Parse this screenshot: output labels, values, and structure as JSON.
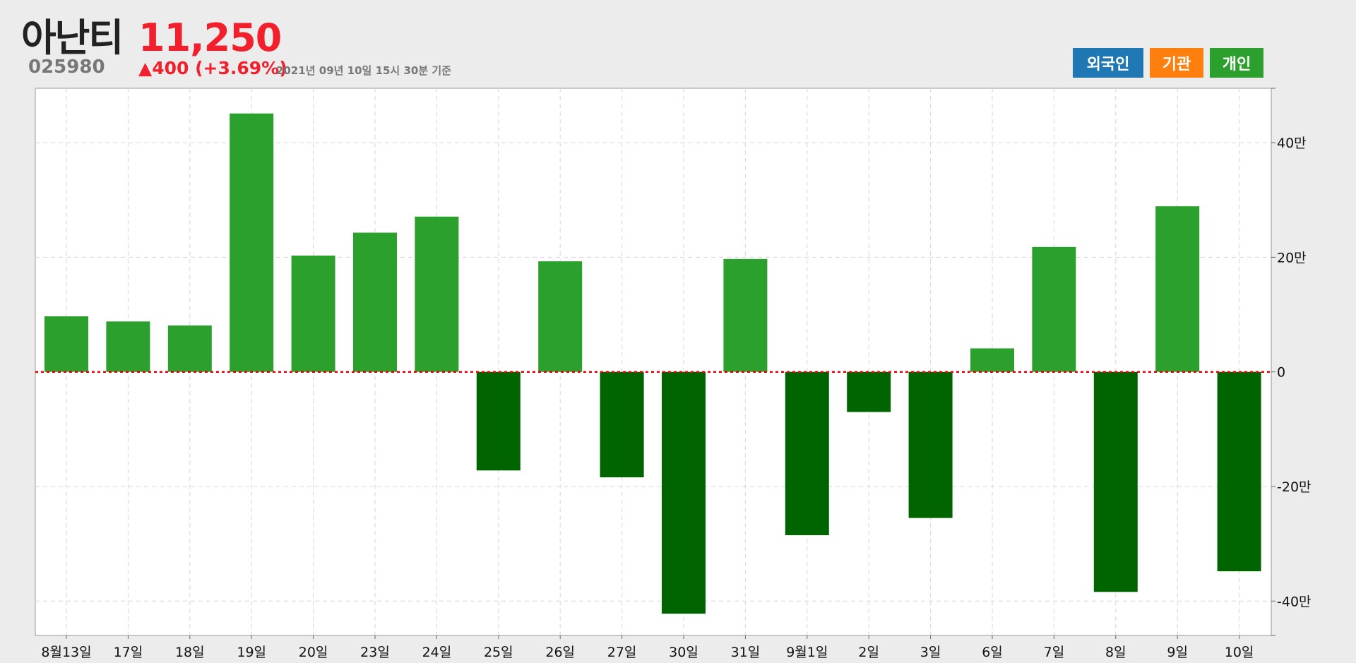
{
  "header": {
    "name": "아난티",
    "code": "025980",
    "price": "11,250",
    "change": "▲400 (+3.69%)",
    "asof": "2021년 09년 10일 15시 30분 기준"
  },
  "legend": {
    "foreign": "외국인",
    "institution": "기관",
    "individual": "개인"
  },
  "colors": {
    "positive": "#2ca02c",
    "negative": "#006400",
    "foreign": "#1f77b4",
    "institution": "#ff7f0e",
    "individual": "#2ca02c",
    "price_up": "#f2202c",
    "zero_line": "#e8000b"
  },
  "chart_data": {
    "type": "bar",
    "categories": [
      "8월13일",
      "17일",
      "18일",
      "19일",
      "20일",
      "23일",
      "24일",
      "25일",
      "26일",
      "27일",
      "30일",
      "31일",
      "9월1일",
      "2일",
      "3일",
      "6일",
      "7일",
      "8일",
      "9일",
      "10일"
    ],
    "series": [
      {
        "name": "개인",
        "values": [
          97000,
          88000,
          81000,
          451000,
          203000,
          243000,
          271000,
          -172000,
          193000,
          -184000,
          -422000,
          197000,
          -285000,
          -70000,
          -255000,
          41000,
          218000,
          -384000,
          289000,
          -348000
        ]
      }
    ],
    "ylim": [
      -460000,
      495000
    ],
    "yticks": [
      -400000,
      -200000,
      0,
      200000,
      400000
    ],
    "ytick_labels": [
      "-40만",
      "-20만",
      "0",
      "20만",
      "40만"
    ],
    "grid": true,
    "zero_line": "dotted"
  }
}
